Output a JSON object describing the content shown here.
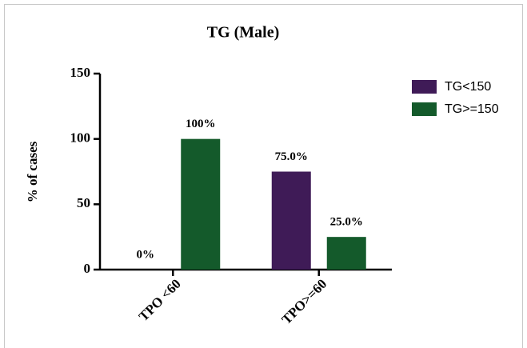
{
  "chart_data": {
    "type": "bar",
    "title": "TG (Male)",
    "y_label": "% of cases",
    "categories": [
      "TPO <60",
      "TPO>=60"
    ],
    "series": [
      {
        "name": "TG<150",
        "color": "#3f1b57",
        "values": [
          0,
          75
        ],
        "value_labels": [
          "0%",
          "75.0%"
        ]
      },
      {
        "name": "TG>=150",
        "color": "#145a2b",
        "values": [
          100,
          25
        ],
        "value_labels": [
          "100%",
          "25.0%"
        ]
      }
    ],
    "ylim": [
      0,
      150
    ],
    "yticks": [
      0,
      50,
      100,
      150
    ],
    "legend": "right"
  }
}
